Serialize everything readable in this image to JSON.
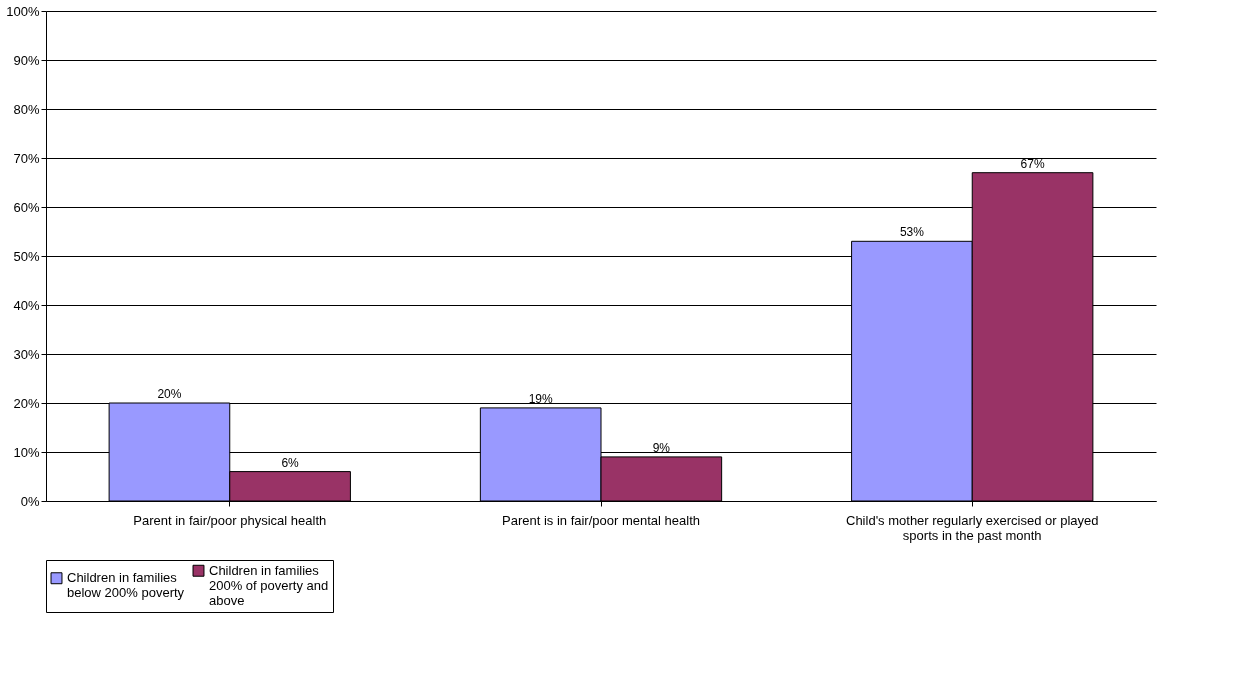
{
  "chart_data": {
    "type": "bar",
    "categories": [
      "Parent in fair/poor physical health",
      "Parent is in fair/poor mental health",
      "Child's mother regularly exercised or played sports in the past month"
    ],
    "series": [
      {
        "name": "Children in families below 200% poverty",
        "color": "#9999ff",
        "values": [
          20,
          19,
          53
        ],
        "value_labels": [
          "20%",
          "19%",
          "53%"
        ]
      },
      {
        "name": "Children in families 200% of poverty and above",
        "color": "#993366",
        "values": [
          6,
          9,
          67
        ],
        "value_labels": [
          "6%",
          "9%",
          "67%"
        ]
      }
    ],
    "ylim": [
      0,
      100
    ],
    "yticks": [
      {
        "value": 0,
        "label": "0%"
      },
      {
        "value": 10,
        "label": "10%"
      },
      {
        "value": 20,
        "label": "20%"
      },
      {
        "value": 30,
        "label": "30%"
      },
      {
        "value": 40,
        "label": "40%"
      },
      {
        "value": 50,
        "label": "50%"
      },
      {
        "value": 60,
        "label": "60%"
      },
      {
        "value": 70,
        "label": "70%"
      },
      {
        "value": 80,
        "label": "80%"
      },
      {
        "value": 90,
        "label": "90%"
      },
      {
        "value": 100,
        "label": "100%"
      }
    ],
    "grid": "y",
    "legend": "bottom"
  }
}
